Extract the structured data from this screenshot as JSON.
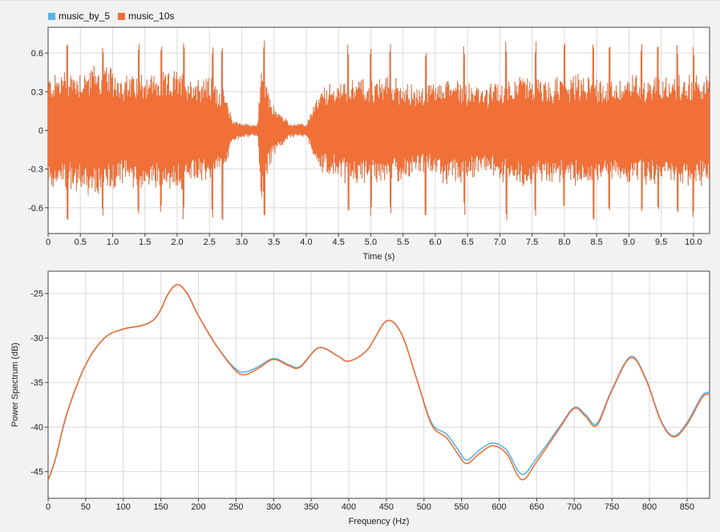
{
  "legend": [
    {
      "name": "music_by_5",
      "color": "#5ab4e6"
    },
    {
      "name": "music_10s",
      "color": "#f07037"
    }
  ],
  "chart_data": [
    {
      "type": "line",
      "title": "",
      "xlabel": "Time (s)",
      "ylabel": "",
      "xlim": [
        0,
        10.25
      ],
      "ylim": [
        -0.8,
        0.8
      ],
      "xticks": [
        0,
        0.5,
        1.0,
        1.5,
        2.0,
        2.5,
        3.0,
        3.5,
        4.0,
        4.5,
        5.0,
        5.5,
        6.0,
        6.5,
        7.0,
        7.5,
        8.0,
        8.5,
        9.0,
        9.5,
        10.0
      ],
      "xtick_labels": [
        "0",
        "0.5",
        "1.0",
        "1.5",
        "2.0",
        "2.5",
        "3.0",
        "3.5",
        "4.0",
        "4.5",
        "5.0",
        "5.5",
        "6.0",
        "6.5",
        "7.0",
        "7.5",
        "8.0",
        "8.5",
        "9.0",
        "9.5",
        "10.0"
      ],
      "yticks": [
        0.6,
        0.3,
        0,
        -0.3,
        -0.6
      ],
      "ytick_labels": [
        "0.6",
        "0.3",
        "0",
        "-0.3",
        "-0.6"
      ],
      "grid": true,
      "series": [
        {
          "name": "music_10s",
          "color": "#f07037",
          "envelope_time": [
            0,
            0.25,
            0.5,
            0.75,
            1.0,
            1.25,
            1.5,
            1.75,
            2.0,
            2.25,
            2.5,
            2.75,
            2.85,
            3.0,
            3.25,
            3.3,
            3.4,
            3.5,
            3.75,
            4.0,
            4.1,
            4.25,
            4.5,
            4.75,
            5.0,
            5.25,
            5.5,
            5.75,
            6.0,
            6.25,
            6.5,
            6.75,
            7.0,
            7.25,
            7.5,
            7.75,
            8.0,
            8.25,
            8.5,
            8.75,
            9.0,
            9.25,
            9.5,
            9.75,
            10.0,
            10.25
          ],
          "envelope_amplitude": [
            0.45,
            0.5,
            0.5,
            0.55,
            0.5,
            0.45,
            0.5,
            0.45,
            0.5,
            0.45,
            0.45,
            0.3,
            0.1,
            0.06,
            0.05,
            0.6,
            0.35,
            0.2,
            0.06,
            0.05,
            0.2,
            0.35,
            0.4,
            0.45,
            0.4,
            0.45,
            0.4,
            0.35,
            0.4,
            0.45,
            0.4,
            0.35,
            0.4,
            0.45,
            0.45,
            0.4,
            0.45,
            0.45,
            0.45,
            0.4,
            0.45,
            0.45,
            0.45,
            0.45,
            0.45,
            0.45
          ],
          "peak_times": [
            0.3,
            0.85,
            1.4,
            1.75,
            2.1,
            2.55,
            2.7,
            3.35,
            4.65,
            5.0,
            5.3,
            5.85,
            6.45,
            7.1,
            7.55,
            8.0,
            8.45,
            8.7,
            9.2,
            9.45,
            9.75,
            10.0
          ],
          "peak_values": [
            0.7,
            0.7,
            0.68,
            0.65,
            0.7,
            0.68,
            0.72,
            0.72,
            0.68,
            0.7,
            0.68,
            0.67,
            0.66,
            0.7,
            0.7,
            0.68,
            0.72,
            0.66,
            0.68,
            0.66,
            0.68,
            0.68
          ]
        },
        {
          "name": "music_by_5",
          "color": "#5ab4e6",
          "note_same_as": "music_10s"
        }
      ]
    },
    {
      "type": "line",
      "title": "",
      "xlabel": "Frequency (Hz)",
      "ylabel": "Power Spectrum (dB)",
      "xlim": [
        0,
        880
      ],
      "ylim": [
        -48,
        -22.5
      ],
      "xticks": [
        0,
        50,
        100,
        150,
        200,
        250,
        300,
        350,
        400,
        450,
        500,
        550,
        600,
        650,
        700,
        750,
        800,
        850
      ],
      "xtick_labels": [
        "0",
        "50",
        "100",
        "150",
        "200",
        "250",
        "300",
        "350",
        "400",
        "450",
        "500",
        "550",
        "600",
        "650",
        "700",
        "750",
        "800",
        "850"
      ],
      "yticks": [
        -25,
        -30,
        -35,
        -40,
        -45
      ],
      "ytick_labels": [
        "-25",
        "-30",
        "-35",
        "-40",
        "-45"
      ],
      "grid": true,
      "series": [
        {
          "name": "music_by_5",
          "color": "#5ab4e6",
          "x": [
            0,
            10,
            25,
            50,
            75,
            100,
            125,
            140,
            150,
            160,
            172,
            185,
            200,
            225,
            250,
            263,
            280,
            300,
            320,
            335,
            360,
            385,
            400,
            425,
            450,
            470,
            490,
            510,
            530,
            545,
            557,
            575,
            592,
            610,
            630,
            650,
            680,
            700,
            715,
            730,
            750,
            775,
            795,
            815,
            832,
            850,
            870,
            880
          ],
          "y": [
            -46,
            -43.5,
            -38.5,
            -33,
            -30,
            -29,
            -28.6,
            -28,
            -26.8,
            -25,
            -24,
            -25,
            -27.5,
            -31,
            -33.5,
            -33.8,
            -33.2,
            -32.3,
            -33,
            -33.2,
            -31.1,
            -32,
            -32.6,
            -31.3,
            -28.1,
            -29.5,
            -34.5,
            -39.5,
            -40.8,
            -42.5,
            -43.7,
            -42.5,
            -41.8,
            -42.6,
            -45.3,
            -43.5,
            -40,
            -37.8,
            -38.6,
            -39.6,
            -35.8,
            -32.1,
            -34.5,
            -39.2,
            -41,
            -39.5,
            -36.5,
            -36.1
          ]
        },
        {
          "name": "music_10s",
          "color": "#f07037",
          "x": [
            0,
            10,
            25,
            50,
            75,
            100,
            125,
            140,
            150,
            160,
            172,
            185,
            200,
            225,
            250,
            263,
            280,
            300,
            320,
            335,
            360,
            385,
            400,
            425,
            450,
            470,
            490,
            510,
            530,
            545,
            557,
            575,
            592,
            610,
            630,
            650,
            680,
            700,
            715,
            730,
            750,
            775,
            795,
            815,
            832,
            850,
            870,
            880
          ],
          "y": [
            -46,
            -43.5,
            -38.5,
            -33,
            -30,
            -29,
            -28.6,
            -28,
            -26.8,
            -25,
            -24,
            -25,
            -27.5,
            -31,
            -33.7,
            -34.1,
            -33.4,
            -32.4,
            -33.1,
            -33.3,
            -31.1,
            -32,
            -32.6,
            -31.3,
            -28.1,
            -29.5,
            -34.5,
            -39.7,
            -41.2,
            -43,
            -44.1,
            -42.9,
            -42.1,
            -43,
            -45.9,
            -43.9,
            -40.2,
            -37.9,
            -38.8,
            -39.8,
            -35.9,
            -32.2,
            -34.6,
            -39.3,
            -41.1,
            -39.7,
            -36.7,
            -36.3
          ]
        }
      ]
    }
  ]
}
